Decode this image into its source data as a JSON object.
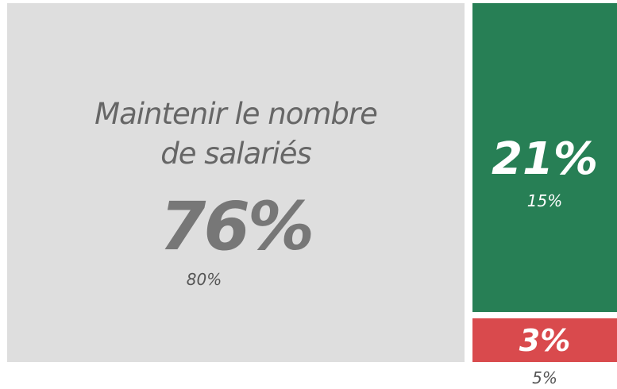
{
  "chart_data": {
    "type": "treemap",
    "categories": [
      "Maintenir le nombre de salariés",
      null,
      null
    ],
    "values": [
      76,
      21,
      3
    ],
    "value_labels": [
      "76%",
      "21%",
      "3%"
    ],
    "colors": [
      "#dedede",
      "#277f55",
      "#d94a4d"
    ],
    "previous": {
      "values": [
        80,
        15,
        5
      ],
      "value_labels": [
        "80%",
        "15%",
        "5%"
      ]
    }
  }
}
